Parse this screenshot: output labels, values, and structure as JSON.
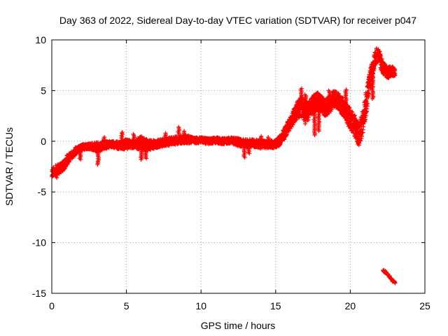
{
  "chart_data": {
    "type": "scatter",
    "title": "Day 363 of 2022, Sidereal Day-to-day VTEC variation (SDTVAR) for receiver p047",
    "xlabel": "GPS time / hours",
    "ylabel": "SDTVAR / TECUs",
    "xlim": [
      0,
      25
    ],
    "ylim": [
      -15,
      10
    ],
    "xticks": [
      0,
      5,
      10,
      15,
      20,
      25
    ],
    "yticks": [
      -15,
      -10,
      -5,
      0,
      5,
      10
    ],
    "grid": true,
    "marker": "+",
    "series": [
      {
        "name": "SDTVAR",
        "color": "#ff0000",
        "trend": {
          "x": [
            0.0,
            0.2,
            0.5,
            0.8,
            1.0,
            1.3,
            1.6,
            2.0,
            2.3,
            2.6,
            3.0,
            3.5,
            4.0,
            4.5,
            5.0,
            5.5,
            6.0,
            6.5,
            7.0,
            7.5,
            8.0,
            8.5,
            9.0,
            9.5,
            10.0,
            10.5,
            11.0,
            11.5,
            12.0,
            12.5,
            13.0,
            13.5,
            14.0,
            14.5,
            15.0,
            15.3,
            15.6,
            15.9,
            16.2,
            16.5,
            16.8,
            17.0,
            17.2,
            17.5,
            17.8,
            18.0,
            18.3,
            18.6,
            18.9,
            19.2,
            19.5,
            19.8,
            20.1,
            20.4,
            20.6,
            20.8,
            21.0,
            21.2,
            21.4,
            21.6,
            21.8,
            22.0,
            22.2,
            22.5,
            22.8,
            23.0
          ],
          "y": [
            -3.1,
            -2.9,
            -2.7,
            -2.4,
            -1.9,
            -1.4,
            -1.0,
            -0.6,
            -0.5,
            -0.5,
            -0.6,
            -0.4,
            -0.3,
            -0.4,
            -0.3,
            -0.3,
            -0.2,
            -0.4,
            -0.3,
            -0.1,
            0.0,
            0.1,
            0.2,
            0.1,
            0.1,
            0.0,
            0.1,
            0.0,
            0.1,
            -0.1,
            -0.2,
            -0.2,
            -0.3,
            -0.3,
            -0.3,
            0.1,
            0.8,
            1.6,
            2.4,
            3.2,
            3.4,
            2.8,
            3.0,
            3.6,
            3.9,
            3.8,
            3.3,
            3.6,
            4.2,
            4.0,
            3.4,
            2.6,
            2.0,
            1.2,
            0.7,
            1.6,
            3.2,
            5.0,
            6.6,
            7.8,
            8.6,
            8.0,
            7.2,
            6.8,
            6.9,
            6.8
          ],
          "spread": [
            0.4,
            0.5,
            0.5,
            0.5,
            0.5,
            0.4,
            0.4,
            0.3,
            0.3,
            0.3,
            0.5,
            0.4,
            0.3,
            0.4,
            0.5,
            0.4,
            0.7,
            0.5,
            0.4,
            0.4,
            0.4,
            0.4,
            0.4,
            0.3,
            0.3,
            0.3,
            0.3,
            0.3,
            0.3,
            0.4,
            0.4,
            0.4,
            0.4,
            0.4,
            0.4,
            0.5,
            0.6,
            0.6,
            0.7,
            0.9,
            1.0,
            1.2,
            0.9,
            0.9,
            0.9,
            0.8,
            0.8,
            0.9,
            0.8,
            0.8,
            0.9,
            1.0,
            1.1,
            1.1,
            1.1,
            1.2,
            1.3,
            1.1,
            0.9,
            0.8,
            0.7,
            0.8,
            0.6,
            0.6,
            0.5,
            0.4
          ]
        },
        "spikes": [
          {
            "x": 0.3,
            "y": -3.6
          },
          {
            "x": 1.9,
            "y": -1.8
          },
          {
            "x": 3.1,
            "y": -2.3
          },
          {
            "x": 3.5,
            "y": 0.4
          },
          {
            "x": 4.7,
            "y": 0.9
          },
          {
            "x": 5.5,
            "y": 0.7
          },
          {
            "x": 6.0,
            "y": -1.8
          },
          {
            "x": 6.3,
            "y": -1.7
          },
          {
            "x": 7.6,
            "y": 0.8
          },
          {
            "x": 8.5,
            "y": 1.4
          },
          {
            "x": 8.9,
            "y": 1.0
          },
          {
            "x": 12.9,
            "y": -1.6
          },
          {
            "x": 13.2,
            "y": -1.2
          },
          {
            "x": 14.0,
            "y": 0.5
          },
          {
            "x": 14.5,
            "y": 0.4
          },
          {
            "x": 16.7,
            "y": 5.2
          },
          {
            "x": 17.0,
            "y": 4.6
          },
          {
            "x": 17.6,
            "y": 0.6
          },
          {
            "x": 17.9,
            "y": 1.0
          },
          {
            "x": 18.6,
            "y": 5.0
          },
          {
            "x": 19.7,
            "y": 5.1
          },
          {
            "x": 20.5,
            "y": -0.3
          },
          {
            "x": 21.5,
            "y": 4.2
          },
          {
            "x": 22.2,
            "y": 7.8
          }
        ],
        "segment2": {
          "x": [
            22.2,
            22.4,
            22.6,
            22.8,
            23.0
          ],
          "y": [
            -12.7,
            -13.0,
            -13.3,
            -13.7,
            -14.0
          ]
        }
      }
    ]
  }
}
